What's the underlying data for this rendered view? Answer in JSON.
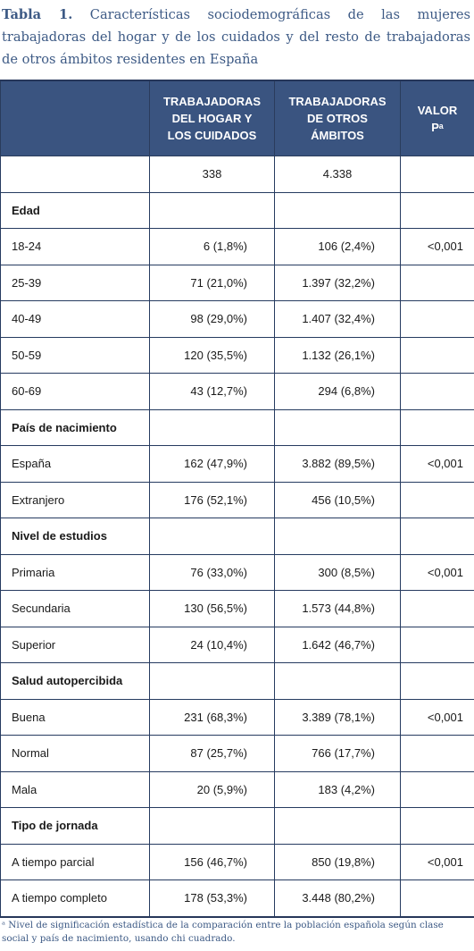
{
  "caption": {
    "lead": "Tabla 1.",
    "text": "Características sociodemográficas de las mujeres trabajadoras del hogar y de los cuidados y del resto de trabajadoras de otros ámbitos residentes en España"
  },
  "header": {
    "col1": "",
    "col2_lines": [
      "TRABAJADORAS",
      "DEL HOGAR Y",
      "LOS CUIDADOS"
    ],
    "col3_lines": [
      "TRABAJADORAS",
      "DE OTROS",
      "ÁMBITOS"
    ],
    "col4_lines": [
      "VALOR",
      "Pᵃ"
    ]
  },
  "totals": {
    "label": "",
    "col2": "338",
    "col3": "4.338",
    "col4": ""
  },
  "rows": [
    {
      "label": "Edad",
      "section": true,
      "col2": "",
      "col3": "",
      "col4": ""
    },
    {
      "label": "18-24",
      "col2": "6 (1,8%)",
      "col3": "106 (2,4%)",
      "col4": "<0,001"
    },
    {
      "label": "25-39",
      "col2": "71 (21,0%)",
      "col3": "1.397 (32,2%)",
      "col4": ""
    },
    {
      "label": "40-49",
      "col2": "98 (29,0%)",
      "col3": "1.407 (32,4%)",
      "col4": ""
    },
    {
      "label": "50-59",
      "col2": "120 (35,5%)",
      "col3": "1.132 (26,1%)",
      "col4": ""
    },
    {
      "label": "60-69",
      "col2": "43 (12,7%)",
      "col3": "294 (6,8%)",
      "col4": ""
    },
    {
      "label": "País de nacimiento",
      "section": true,
      "col2": "",
      "col3": "",
      "col4": ""
    },
    {
      "label": "España",
      "col2": "162 (47,9%)",
      "col3": "3.882 (89,5%)",
      "col4": "<0,001"
    },
    {
      "label": "Extranjero",
      "col2": "176 (52,1%)",
      "col3": "456 (10,5%)",
      "col4": ""
    },
    {
      "label": "Nivel de estudios",
      "section": true,
      "col2": "",
      "col3": "",
      "col4": ""
    },
    {
      "label": "Primaria",
      "col2": "76 (33,0%)",
      "col3": "300 (8,5%)",
      "col4": "<0,001"
    },
    {
      "label": "Secundaria",
      "col2": "130 (56,5%)",
      "col3": "1.573 (44,8%)",
      "col4": ""
    },
    {
      "label": "Superior",
      "col2": "24 (10,4%)",
      "col3": "1.642 (46,7%)",
      "col4": ""
    },
    {
      "label": "Salud autopercibida",
      "section": true,
      "col2": "",
      "col3": "",
      "col4": ""
    },
    {
      "label": "Buena",
      "col2": "231 (68,3%)",
      "col3": "3.389 (78,1%)",
      "col4": "<0,001"
    },
    {
      "label": "Normal",
      "col2": "87 (25,7%)",
      "col3": "766 (17,7%)",
      "col4": ""
    },
    {
      "label": "Mala",
      "col2": "20 (5,9%)",
      "col3": "183 (4,2%)",
      "col4": ""
    },
    {
      "label": "Tipo de jornada",
      "section": true,
      "col2": "",
      "col3": "",
      "col4": ""
    },
    {
      "label": "A tiempo parcial",
      "col2": "156 (46,7%)",
      "col3": "850 (19,8%)",
      "col4": "<0,001"
    },
    {
      "label": "A tiempo completo",
      "col2": "178 (53,3%)",
      "col3": "3.448 (80,2%)",
      "col4": ""
    }
  ],
  "footnote": "ᵃ Nivel de significación estadística de la comparación entre la población española según clase social y país de nacimiento, usando chi cuadrado.",
  "colors": {
    "header_bg": "#3a5480",
    "caption_text": "#3d5a85",
    "border": "#263b60"
  }
}
